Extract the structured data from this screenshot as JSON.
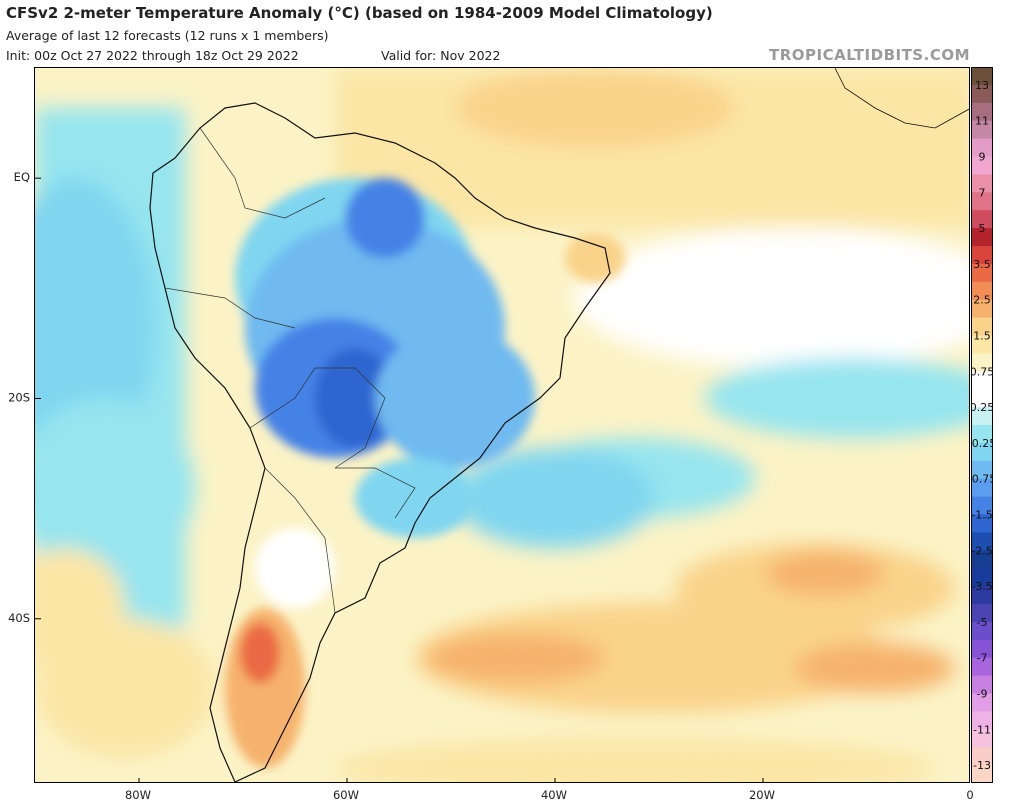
{
  "header": {
    "title": "CFSv2 2-meter Temperature Anomaly (°C) (based on 1984-2009 Model Climatology)",
    "subtitle": "Average of last 12 forecasts (12 runs x 1 members)",
    "init": "Init: 00z Oct 27 2022 through 18z Oct 29 2022",
    "valid": "Valid for: Nov 2022",
    "brand": "TROPICALTIDBITS.COM"
  },
  "axes": {
    "x_ticks": [
      {
        "label": "80W",
        "lon": -80
      },
      {
        "label": "60W",
        "lon": -60
      },
      {
        "label": "40W",
        "lon": -40
      },
      {
        "label": "20W",
        "lon": -20
      },
      {
        "label": "0",
        "lon": 0
      }
    ],
    "y_ticks": [
      {
        "label": "EQ",
        "lat": 0
      },
      {
        "label": "20S",
        "lat": -20
      },
      {
        "label": "40S",
        "lat": -40
      }
    ],
    "lon_range": [
      -90,
      0
    ],
    "lat_range": [
      -55,
      10
    ]
  },
  "colorbar": {
    "labels": [
      "13",
      "11",
      "9",
      "7",
      "5",
      "3.5",
      "2.5",
      "1.5",
      "0.75",
      "0.25",
      "-0.25",
      "-0.75",
      "-1.5",
      "-2.5",
      "-3.5",
      "-5",
      "-7",
      "-9",
      "-11",
      "-13"
    ],
    "colors": [
      "#6b4f3a",
      "#8a5a58",
      "#a86e80",
      "#c487a6",
      "#e39bc8",
      "#f1a6cf",
      "#eb90a6",
      "#e07388",
      "#cf4c5e",
      "#b5242d",
      "#d9443a",
      "#ea6a45",
      "#f18d55",
      "#f6b26c",
      "#fad38a",
      "#fbe6a6",
      "#fbf3c6",
      "#ffffff",
      "#ffffff",
      "#c8f1f3",
      "#96e5ef",
      "#80d6f0",
      "#6fbaf0",
      "#5b9ef0",
      "#4582e6",
      "#2e65d0",
      "#1d4fb3",
      "#163e93",
      "#193b9c",
      "#2d3aa0",
      "#4a44b3",
      "#6a4ecb",
      "#8652d6",
      "#a865dd",
      "#c780e0",
      "#e19ee7",
      "#efb2e6",
      "#f7c2e0",
      "#f9cdc8",
      "#fad6c6"
    ],
    "aria": "temperature anomaly scale"
  },
  "map": {
    "land_color": "#ffffff",
    "border_color": "#111111"
  }
}
